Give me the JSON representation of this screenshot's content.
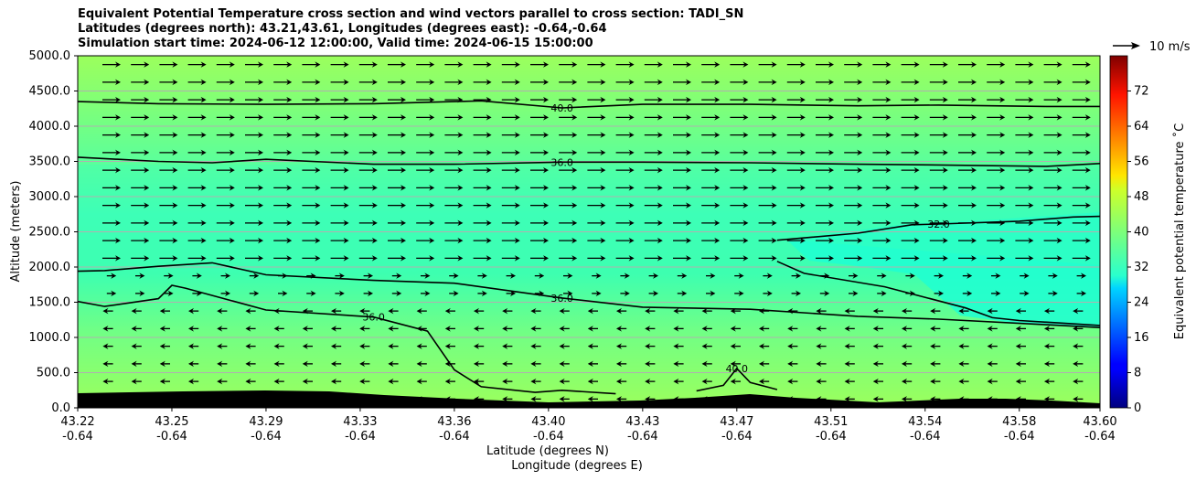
{
  "title": {
    "line1": "Equivalent Potential Temperature cross section and wind vectors parallel to cross section: TADI_SN",
    "line2": "Latitudes (degrees north): 43.21,43.61, Longitudes (degrees east): -0.64,-0.64",
    "line3": "Simulation start time: 2024-06-12 12:00:00, Valid time: 2024-06-15 15:00:00"
  },
  "chart_data": {
    "type": "heatmap",
    "subtype": "filled-contour cross section with wind vectors",
    "xlabel_line1": "Latitude (degrees N)",
    "xlabel_line2": "Longitude (degrees E)",
    "ylabel": "Altitude (meters)",
    "xlim": [
      43.22,
      43.6
    ],
    "ylim": [
      0,
      5000
    ],
    "x_ticks": [
      {
        "lat": "43.22",
        "lon": "-0.64",
        "v": 43.22
      },
      {
        "lat": "43.25",
        "lon": "-0.64",
        "v": 43.255
      },
      {
        "lat": "43.29",
        "lon": "-0.64",
        "v": 43.29
      },
      {
        "lat": "43.33",
        "lon": "-0.64",
        "v": 43.325
      },
      {
        "lat": "43.36",
        "lon": "-0.64",
        "v": 43.36
      },
      {
        "lat": "43.40",
        "lon": "-0.64",
        "v": 43.395
      },
      {
        "lat": "43.43",
        "lon": "-0.64",
        "v": 43.43
      },
      {
        "lat": "43.47",
        "lon": "-0.64",
        "v": 43.465
      },
      {
        "lat": "43.51",
        "lon": "-0.64",
        "v": 43.5
      },
      {
        "lat": "43.54",
        "lon": "-0.64",
        "v": 43.535
      },
      {
        "lat": "43.58",
        "lon": "-0.64",
        "v": 43.57
      },
      {
        "lat": "43.60",
        "lon": "-0.64",
        "v": 43.6
      }
    ],
    "y_ticks": [
      "0.0",
      "500.0",
      "1000.0",
      "1500.0",
      "2000.0",
      "2500.0",
      "3000.0",
      "3500.0",
      "4000.0",
      "4500.0",
      "5000.0"
    ],
    "grid": "horizontal",
    "colorbar": {
      "label": "Equivalent potential temperature $^\\circ$C",
      "label_display": "Equivalent potential temperature ˚C",
      "range": [
        0,
        80
      ],
      "ticks": [
        "0",
        "8",
        "16",
        "24",
        "32",
        "40",
        "48",
        "56",
        "64",
        "72"
      ],
      "colormap": "jet"
    },
    "wind_key": {
      "label": "10 m/s"
    },
    "contours": [
      {
        "level": "40.0",
        "label": "40.0",
        "x": [
          43.22,
          43.25,
          43.29,
          43.33,
          43.36,
          43.37,
          43.4,
          43.43,
          43.47,
          43.51,
          43.54,
          43.58,
          43.6
        ],
        "y": [
          4350,
          4320,
          4310,
          4320,
          4350,
          4360,
          4260,
          4310,
          4310,
          4290,
          4300,
          4280,
          4280
        ]
      },
      {
        "level": "36.0",
        "label": "36.0",
        "x": [
          43.22,
          43.25,
          43.27,
          43.29,
          43.33,
          43.36,
          43.4,
          43.43,
          43.47,
          43.51,
          43.54,
          43.58,
          43.6
        ],
        "y": [
          3560,
          3500,
          3480,
          3530,
          3460,
          3460,
          3490,
          3490,
          3480,
          3460,
          3450,
          3430,
          3470
        ]
      },
      {
        "level": "32.0",
        "label": "32.0",
        "x": [
          43.48,
          43.51,
          43.53,
          43.54,
          43.57,
          43.59,
          43.6
        ],
        "y": [
          2380,
          2480,
          2600,
          2610,
          2650,
          2710,
          2720
        ]
      },
      {
        "level": "32.0",
        "x": [
          43.48,
          43.49,
          43.52,
          43.55,
          43.56,
          43.57,
          43.6
        ],
        "y": [
          2080,
          1910,
          1720,
          1420,
          1280,
          1240,
          1170
        ]
      },
      {
        "level": "36.0",
        "label": "36.0",
        "x": [
          43.22,
          43.23,
          43.25,
          43.27,
          43.29,
          43.33,
          43.36,
          43.4,
          43.43,
          43.47,
          43.51,
          43.54,
          43.58,
          43.6
        ],
        "y": [
          1940,
          1950,
          2010,
          2060,
          1890,
          1810,
          1770,
          1560,
          1430,
          1400,
          1300,
          1260,
          1180,
          1140
        ]
      },
      {
        "level": "36.0",
        "label": "36.0",
        "x": [
          43.22,
          43.23,
          43.25,
          43.255,
          43.26,
          43.29,
          43.33,
          43.35,
          43.36,
          43.37,
          43.39,
          43.4,
          43.42
        ],
        "y": [
          1510,
          1440,
          1550,
          1740,
          1700,
          1390,
          1290,
          1090,
          540,
          300,
          220,
          250,
          200
        ]
      },
      {
        "level": "40.0",
        "label": "40.0",
        "x": [
          43.45,
          43.46,
          43.465,
          43.47,
          43.48
        ],
        "y": [
          240,
          320,
          560,
          360,
          260
        ]
      }
    ],
    "field_description": "theta-e about 40-44 C near the surface and aloft, minimum about 30-32 C between 2000 and 3000 m on the northern side",
    "terrain": "black terrain band along the bottom, roughly 100-250 m",
    "wind": "westerly (left-to-right) vectors above about 1500 m, weak easterly (right-to-left) vectors near the surface"
  }
}
